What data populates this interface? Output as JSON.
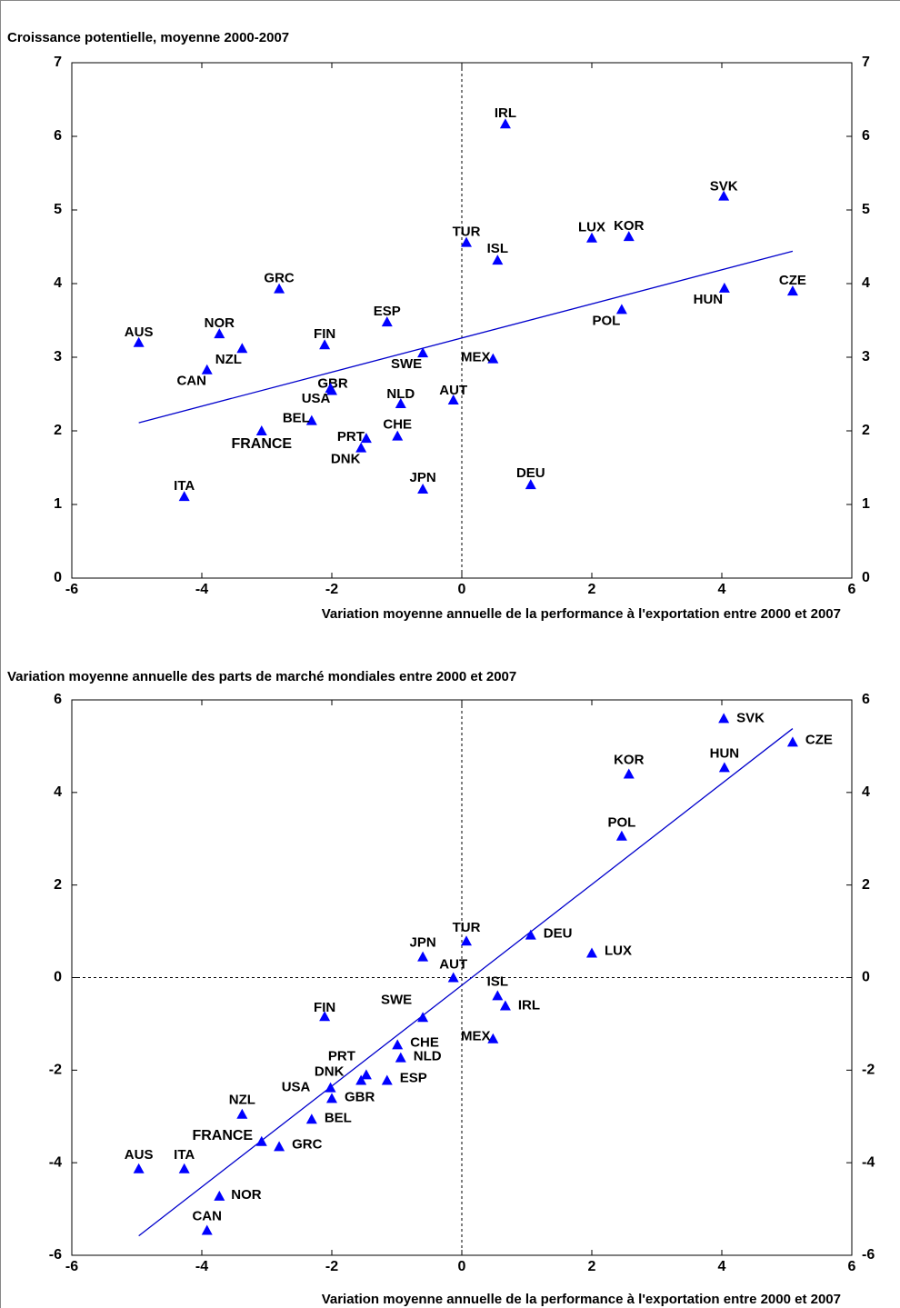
{
  "chart_data": [
    {
      "type": "scatter",
      "title": "Croissance potentielle, moyenne 2000-2007",
      "x_label": "Variation moyenne annuelle de la performance à l'exportation entre 2000 et 2007",
      "labels": [
        "AUS",
        "NOR",
        "NZL",
        "CAN",
        "GRC",
        "FIN",
        "ESP",
        "SWE",
        "GBR",
        "USA",
        "BEL",
        "FRANCE",
        "PRT",
        "DNK",
        "CHE",
        "NLD",
        "AUT",
        "JPN",
        "DEU",
        "ITA",
        "MEX",
        "TUR",
        "ISL",
        "IRL",
        "LUX",
        "KOR",
        "POL",
        "SVK",
        "HUN",
        "CZE"
      ],
      "x": [
        -4.97,
        -3.73,
        -3.38,
        -3.92,
        -2.81,
        -2.11,
        -1.15,
        -0.6,
        -2.0,
        -2.02,
        -2.31,
        -3.08,
        -1.47,
        -1.55,
        -0.99,
        -0.94,
        -0.13,
        -0.6,
        1.06,
        -4.27,
        0.48,
        0.07,
        0.55,
        0.67,
        2.0,
        2.57,
        2.46,
        4.03,
        4.04,
        5.09
      ],
      "y": [
        3.2,
        3.32,
        3.12,
        2.83,
        3.93,
        3.17,
        3.48,
        3.06,
        2.55,
        2.58,
        2.14,
        2.0,
        1.9,
        1.77,
        1.93,
        2.37,
        2.42,
        1.21,
        1.27,
        1.11,
        2.98,
        4.56,
        4.32,
        6.17,
        4.62,
        4.64,
        3.65,
        5.19,
        3.94,
        3.9
      ],
      "color": "#0000ff",
      "highlight_point": 11,
      "trendline": {
        "x": [
          -4.97,
          5.09
        ],
        "y": [
          2.11,
          4.44
        ],
        "color": "#0000cc"
      },
      "vline": 0,
      "xlim": [
        -6,
        6
      ],
      "xticks": [
        -6,
        -4,
        -2,
        0,
        2,
        4,
        6
      ],
      "ylim": [
        0,
        7
      ],
      "yticks": [
        0,
        1,
        2,
        3,
        4,
        5,
        6,
        7
      ]
    },
    {
      "type": "scatter",
      "title": "Variation moyenne annuelle des parts de marché mondiales entre 2000 et 2007",
      "x_label": "Variation moyenne annuelle de la performance à l'exportation entre 2000 et 2007",
      "labels": [
        "AUS",
        "NOR",
        "NZL",
        "CAN",
        "GRC",
        "FIN",
        "ESP",
        "SWE",
        "GBR",
        "USA",
        "BEL",
        "FRANCE",
        "PRT",
        "DNK",
        "CHE",
        "NLD",
        "AUT",
        "JPN",
        "DEU",
        "ITA",
        "MEX",
        "TUR",
        "ISL",
        "IRL",
        "LUX",
        "KOR",
        "POL",
        "SVK",
        "HUN",
        "CZE"
      ],
      "x": [
        -4.97,
        -3.73,
        -3.38,
        -3.92,
        -2.81,
        -2.11,
        -1.15,
        -0.6,
        -2.0,
        -2.02,
        -2.31,
        -3.08,
        -1.47,
        -1.55,
        -0.99,
        -0.94,
        -0.13,
        -0.6,
        1.06,
        -4.27,
        0.48,
        0.07,
        0.55,
        0.67,
        2.0,
        2.57,
        2.46,
        4.03,
        4.04,
        5.09
      ],
      "y": [
        -4.13,
        -4.72,
        -2.95,
        -5.46,
        -3.65,
        -0.84,
        -2.22,
        -0.86,
        -2.61,
        -2.38,
        -3.06,
        -3.54,
        -2.1,
        -2.22,
        -1.45,
        -1.73,
        0.0,
        0.45,
        0.92,
        -4.13,
        -1.32,
        0.79,
        -0.39,
        -0.61,
        0.53,
        4.4,
        3.06,
        5.6,
        4.54,
        5.09
      ],
      "color": "#0000ff",
      "highlight_point": 11,
      "trendline": {
        "x": [
          -4.97,
          5.09
        ],
        "y": [
          -5.58,
          5.38
        ],
        "color": "#0000cc"
      },
      "vline": 0,
      "hline": 0,
      "xlim": [
        -6,
        6
      ],
      "xticks": [
        -6,
        -4,
        -2,
        0,
        2,
        4,
        6
      ],
      "ylim": [
        -6,
        6
      ],
      "yticks": [
        -6,
        -4,
        -2,
        0,
        2,
        4,
        6
      ]
    }
  ]
}
